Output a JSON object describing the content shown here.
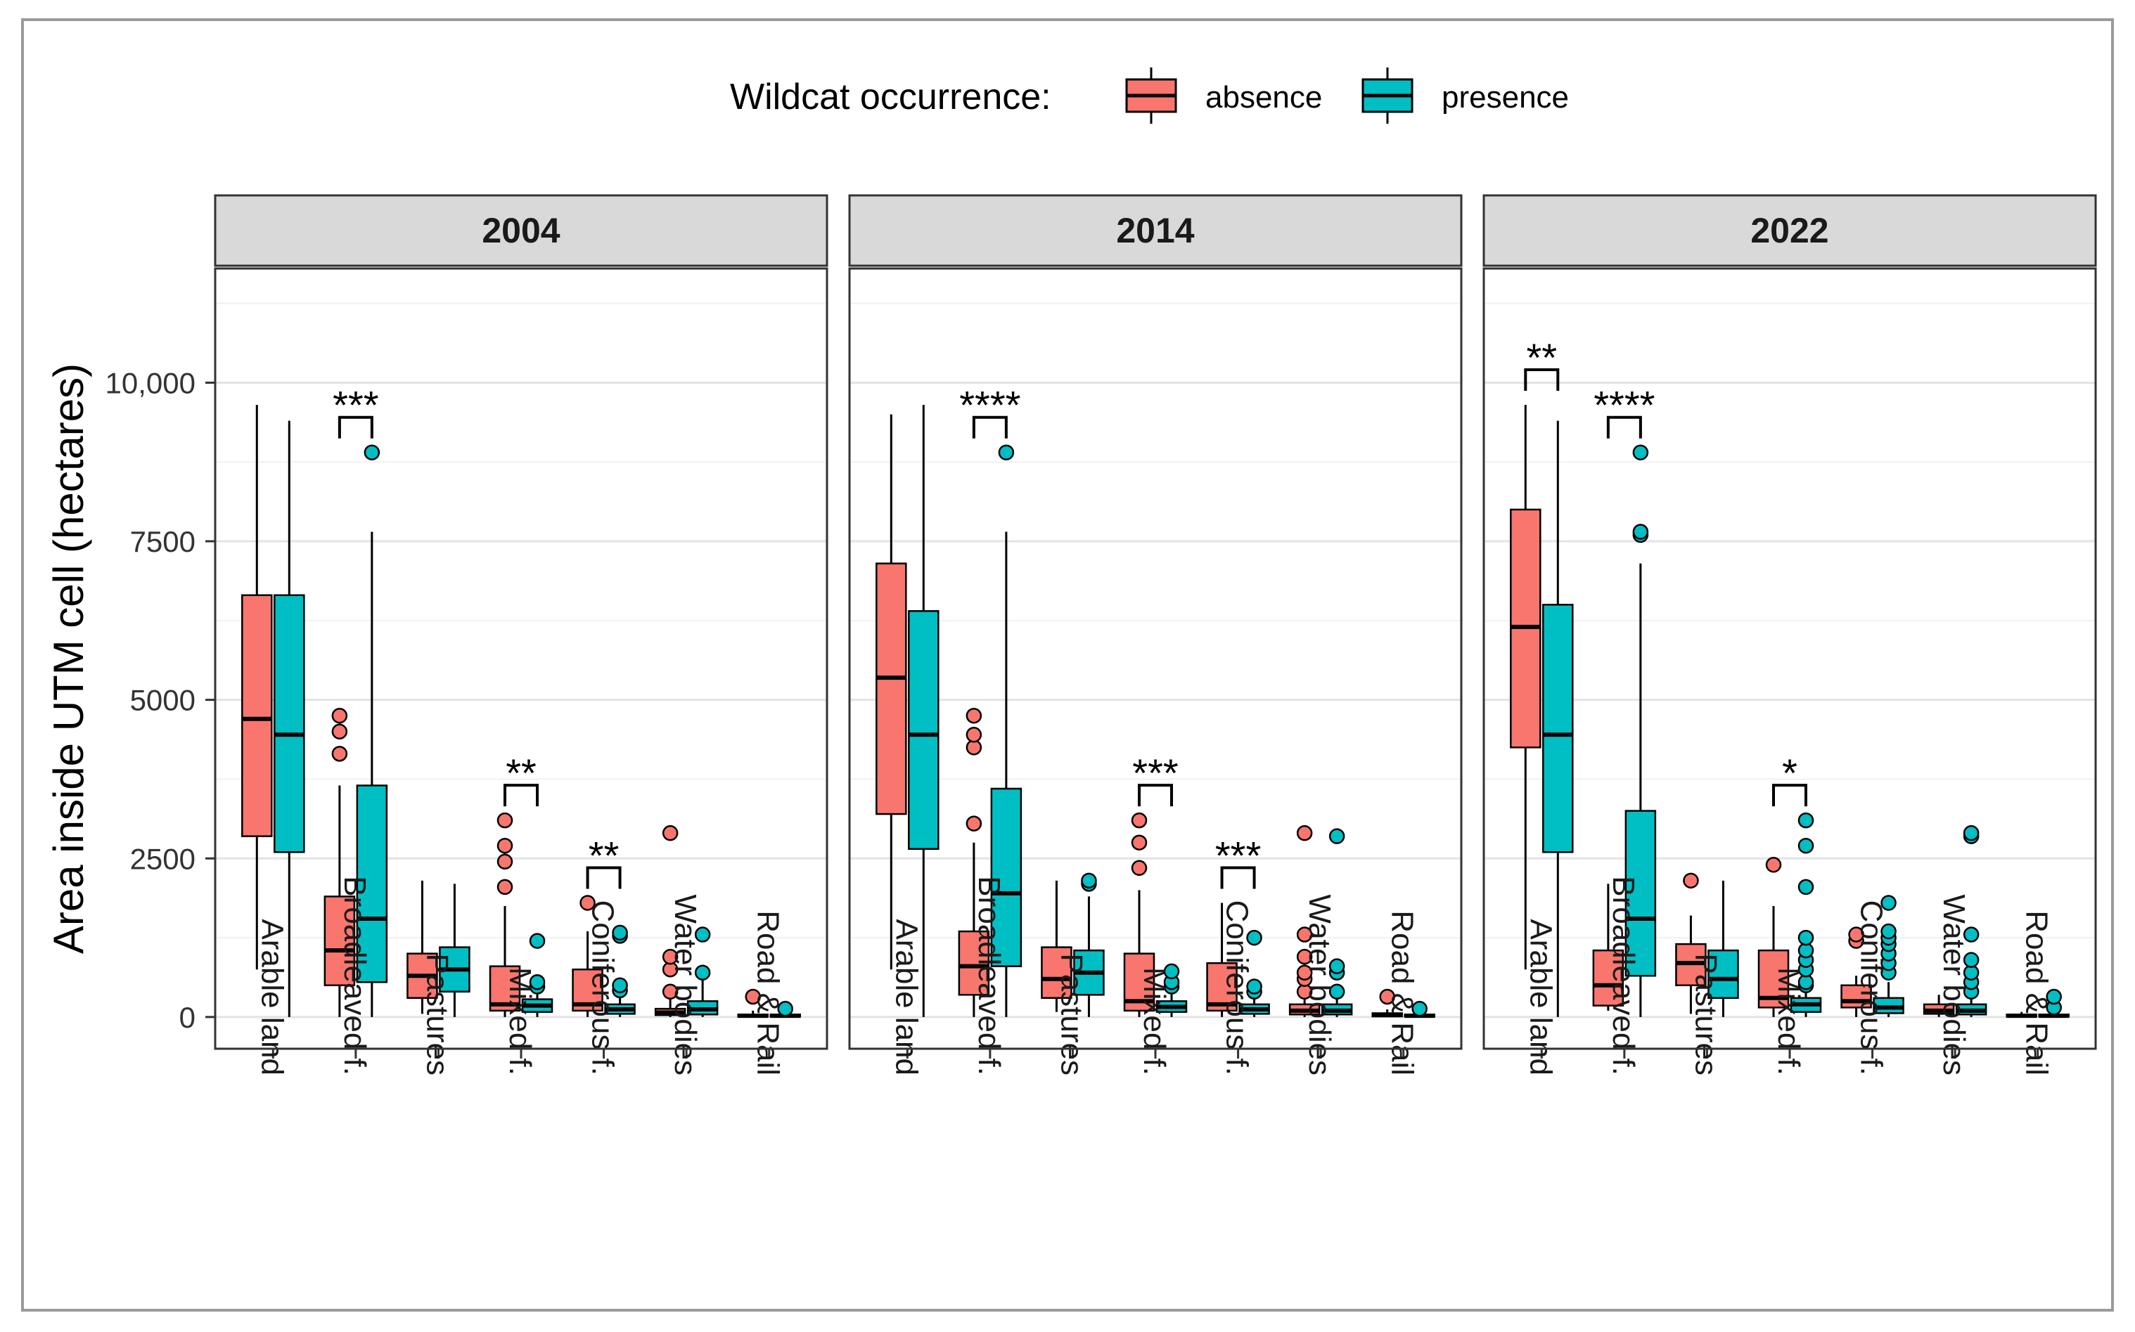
{
  "chart_data": {
    "type": "boxplot",
    "ylabel": "Area inside UTM cell (hectares)",
    "xlabel": "",
    "ylim": [
      -500,
      11800
    ],
    "y_ticks": [
      0,
      2500,
      5000,
      7500,
      10000
    ],
    "y_tick_labels": [
      "0",
      "2500",
      "5000",
      "7500",
      "10,000"
    ],
    "grid": true,
    "legend": {
      "title": "Wildcat occurrence:",
      "position": "top",
      "entries": [
        {
          "name": "absence",
          "color": "#F8766D"
        },
        {
          "name": "presence",
          "color": "#00BFC4"
        }
      ]
    },
    "categories": [
      "Arable land",
      "Broadleaved f.",
      "Pastures",
      "Mixed f.",
      "Coniferous f.",
      "Water bodies",
      "Road & Rail"
    ],
    "panels": [
      {
        "title": "2004",
        "groups": [
          {
            "category": "Arable land",
            "absence": {
              "min": 750,
              "q1": 2850,
              "median": 4700,
              "q3": 6650,
              "max": 9650,
              "outliers": []
            },
            "presence": {
              "min": 0,
              "q1": 2600,
              "median": 4450,
              "q3": 6650,
              "max": 9400,
              "outliers": []
            }
          },
          {
            "category": "Broadleaved f.",
            "significance": "***",
            "absence": {
              "min": 0,
              "q1": 500,
              "median": 1050,
              "q3": 1900,
              "max": 3650,
              "outliers": [
                4150,
                4500,
                4750
              ]
            },
            "presence": {
              "min": 0,
              "q1": 550,
              "median": 1550,
              "q3": 3650,
              "max": 7650,
              "outliers": [
                8900
              ]
            }
          },
          {
            "category": "Pastures",
            "absence": {
              "min": 50,
              "q1": 300,
              "median": 650,
              "q3": 1000,
              "max": 2150,
              "outliers": []
            },
            "presence": {
              "min": 0,
              "q1": 400,
              "median": 750,
              "q3": 1100,
              "max": 2100,
              "outliers": []
            }
          },
          {
            "category": "Mixed f.",
            "significance": "**",
            "absence": {
              "min": 0,
              "q1": 100,
              "median": 200,
              "q3": 800,
              "max": 1750,
              "outliers": [
                2050,
                2450,
                2700,
                3100
              ]
            },
            "presence": {
              "min": 0,
              "q1": 80,
              "median": 180,
              "q3": 280,
              "max": 450,
              "outliers": [
                480,
                550,
                1200
              ]
            }
          },
          {
            "category": "Coniferous f.",
            "significance": "**",
            "absence": {
              "min": 0,
              "q1": 100,
              "median": 200,
              "q3": 750,
              "max": 1350,
              "outliers": [
                1800
              ]
            },
            "presence": {
              "min": 0,
              "q1": 50,
              "median": 120,
              "q3": 200,
              "max": 350,
              "outliers": [
                420,
                500,
                1280,
                1330
              ]
            }
          },
          {
            "category": "Water bodies",
            "absence": {
              "min": 0,
              "q1": 30,
              "median": 70,
              "q3": 130,
              "max": 300,
              "outliers": [
                400,
                750,
                950,
                2900
              ]
            },
            "presence": {
              "min": 0,
              "q1": 40,
              "median": 120,
              "q3": 250,
              "max": 600,
              "outliers": [
                700,
                1300
              ]
            }
          },
          {
            "category": "Road & Rail",
            "absence": {
              "min": 0,
              "q1": 5,
              "median": 20,
              "q3": 40,
              "max": 100,
              "outliers": [
                320
              ]
            },
            "presence": {
              "min": 0,
              "q1": 5,
              "median": 20,
              "q3": 40,
              "max": 80,
              "outliers": [
                130
              ]
            }
          }
        ]
      },
      {
        "title": "2014",
        "groups": [
          {
            "category": "Arable land",
            "absence": {
              "min": 750,
              "q1": 3200,
              "median": 5350,
              "q3": 7150,
              "max": 9500,
              "outliers": []
            },
            "presence": {
              "min": 0,
              "q1": 2650,
              "median": 4450,
              "q3": 6400,
              "max": 9650,
              "outliers": []
            }
          },
          {
            "category": "Broadleaved f.",
            "significance": "****",
            "absence": {
              "min": 0,
              "q1": 350,
              "median": 800,
              "q3": 1350,
              "max": 2750,
              "outliers": [
                3050,
                4250,
                4450,
                4750
              ]
            },
            "presence": {
              "min": 0,
              "q1": 800,
              "median": 1950,
              "q3": 3600,
              "max": 7650,
              "outliers": [
                8900
              ]
            }
          },
          {
            "category": "Pastures",
            "absence": {
              "min": 80,
              "q1": 300,
              "median": 600,
              "q3": 1100,
              "max": 2150,
              "outliers": []
            },
            "presence": {
              "min": 0,
              "q1": 350,
              "median": 700,
              "q3": 1050,
              "max": 1900,
              "outliers": [
                2100,
                2150
              ]
            }
          },
          {
            "category": "Mixed f.",
            "significance": "***",
            "absence": {
              "min": 0,
              "q1": 100,
              "median": 250,
              "q3": 1000,
              "max": 2000,
              "outliers": [
                2350,
                2750,
                3100
              ]
            },
            "presence": {
              "min": 0,
              "q1": 80,
              "median": 160,
              "q3": 250,
              "max": 400,
              "outliers": [
                480,
                550,
                720
              ]
            }
          },
          {
            "category": "Coniferous f.",
            "significance": "***",
            "absence": {
              "min": 0,
              "q1": 100,
              "median": 200,
              "q3": 850,
              "max": 1800,
              "outliers": []
            },
            "presence": {
              "min": 0,
              "q1": 50,
              "median": 120,
              "q3": 200,
              "max": 350,
              "outliers": [
                400,
                480,
                1250
              ]
            }
          },
          {
            "category": "Water bodies",
            "absence": {
              "min": 0,
              "q1": 40,
              "median": 100,
              "q3": 200,
              "max": 350,
              "outliers": [
                400,
                600,
                700,
                950,
                1300,
                2900
              ]
            },
            "presence": {
              "min": 0,
              "q1": 40,
              "median": 100,
              "q3": 200,
              "max": 350,
              "outliers": [
                400,
                700,
                800,
                2850
              ]
            }
          },
          {
            "category": "Road & Rail",
            "absence": {
              "min": 0,
              "q1": 10,
              "median": 30,
              "q3": 60,
              "max": 120,
              "outliers": [
                320
              ]
            },
            "presence": {
              "min": 0,
              "q1": 5,
              "median": 20,
              "q3": 40,
              "max": 80,
              "outliers": [
                130
              ]
            }
          }
        ]
      },
      {
        "title": "2022",
        "groups": [
          {
            "category": "Arable land",
            "significance": "**",
            "absence": {
              "min": 750,
              "q1": 4250,
              "median": 6150,
              "q3": 8000,
              "max": 9650,
              "outliers": []
            },
            "presence": {
              "min": 0,
              "q1": 2600,
              "median": 4450,
              "q3": 6500,
              "max": 9400,
              "outliers": []
            }
          },
          {
            "category": "Broadleaved f.",
            "significance": "****",
            "absence": {
              "min": 100,
              "q1": 180,
              "median": 500,
              "q3": 1050,
              "max": 2100,
              "outliers": []
            },
            "presence": {
              "min": 0,
              "q1": 650,
              "median": 1550,
              "q3": 3250,
              "max": 7150,
              "outliers": [
                7600,
                7650,
                8900
              ]
            }
          },
          {
            "category": "Pastures",
            "absence": {
              "min": 50,
              "q1": 500,
              "median": 850,
              "q3": 1150,
              "max": 1600,
              "outliers": [
                2150
              ]
            },
            "presence": {
              "min": 0,
              "q1": 300,
              "median": 600,
              "q3": 1050,
              "max": 2150,
              "outliers": []
            }
          },
          {
            "category": "Mixed f.",
            "significance": "*",
            "absence": {
              "min": 0,
              "q1": 150,
              "median": 300,
              "q3": 1050,
              "max": 1750,
              "outliers": [
                2400
              ]
            },
            "presence": {
              "min": 0,
              "q1": 80,
              "median": 200,
              "q3": 300,
              "max": 450,
              "outliers": [
                500,
                550,
                750,
                900,
                1050,
                1250,
                2050,
                2700,
                3100
              ]
            }
          },
          {
            "category": "Coniferous f.",
            "absence": {
              "min": 0,
              "q1": 150,
              "median": 250,
              "q3": 500,
              "max": 650,
              "outliers": [
                1200,
                1300
              ]
            },
            "presence": {
              "min": 0,
              "q1": 60,
              "median": 150,
              "q3": 300,
              "max": 550,
              "outliers": [
                700,
                850,
                1000,
                1150,
                1250,
                1350,
                1800
              ]
            }
          },
          {
            "category": "Water bodies",
            "absence": {
              "min": 0,
              "q1": 50,
              "median": 100,
              "q3": 200,
              "max": 350,
              "outliers": []
            },
            "presence": {
              "min": 0,
              "q1": 40,
              "median": 100,
              "q3": 200,
              "max": 350,
              "outliers": [
                400,
                550,
                700,
                900,
                1300,
                2850,
                2900
              ]
            }
          },
          {
            "category": "Road & Rail",
            "absence": {
              "min": 0,
              "q1": 5,
              "median": 20,
              "q3": 40,
              "max": 80,
              "outliers": []
            },
            "presence": {
              "min": 0,
              "q1": 5,
              "median": 20,
              "q3": 40,
              "max": 120,
              "outliers": [
                150,
                320
              ]
            }
          }
        ]
      }
    ]
  }
}
